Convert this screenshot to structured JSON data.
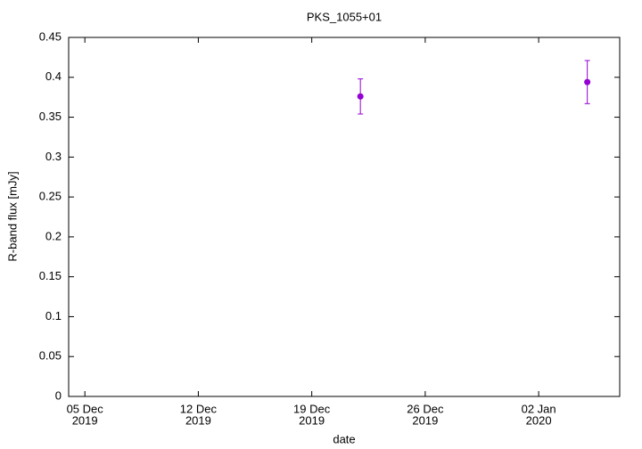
{
  "chart_data": {
    "type": "scatter",
    "title": "PKS_1055+01",
    "xlabel": "date",
    "ylabel": "R-band flux [mJy]",
    "x": [
      "2019-12-22",
      "2020-01-05"
    ],
    "series": [
      {
        "name": "R-band flux",
        "color": "#9400d3",
        "values": [
          0.376,
          0.394
        ],
        "errors": [
          0.022,
          0.027
        ]
      }
    ],
    "xlim": [
      "2019-12-04",
      "2020-01-07"
    ],
    "xticks": [
      {
        "value": "2019-12-05",
        "label": [
          "05 Dec",
          "2019"
        ]
      },
      {
        "value": "2019-12-12",
        "label": [
          "12 Dec",
          "2019"
        ]
      },
      {
        "value": "2019-12-19",
        "label": [
          "19 Dec",
          "2019"
        ]
      },
      {
        "value": "2019-12-26",
        "label": [
          "26 Dec",
          "2019"
        ]
      },
      {
        "value": "2020-01-02",
        "label": [
          "02 Jan",
          "2020"
        ]
      }
    ],
    "ylim": [
      0,
      0.45
    ],
    "yticks": [
      0,
      0.05,
      0.1,
      0.15,
      0.2,
      0.25,
      0.3,
      0.35,
      0.4,
      0.45
    ],
    "grid": false
  }
}
